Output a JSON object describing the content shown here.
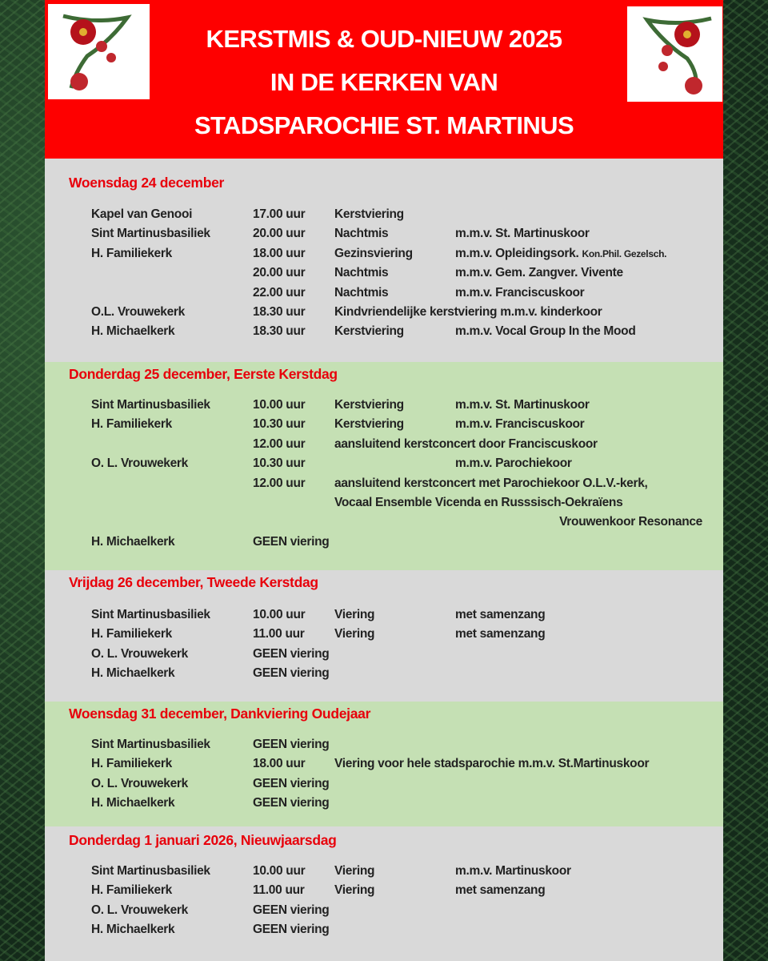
{
  "header": {
    "title_lines": [
      "KERSTMIS & OUD-NIEUW 2025",
      "IN DE KERKEN VAN",
      "STADSPAROCHIE ST. MARTINUS"
    ],
    "decoration_icon": "poinsettia-ornament-icon",
    "background_color": "#fe0000"
  },
  "colors": {
    "heading": "#e8000b",
    "gray_band": "#d9d9d9",
    "green_band": "#c5e0b4"
  },
  "sections": [
    {
      "heading": "Woensdag 24 december",
      "rows": [
        {
          "church": "Kapel van Genooi",
          "time": "17.00 uur",
          "event": "Kerstviering",
          "extra": ""
        },
        {
          "church": "Sint Martinusbasiliek",
          "time": "20.00 uur",
          "event": "Nachtmis",
          "extra": "m.m.v. St. Martinuskoor"
        },
        {
          "church": "H. Familiekerk",
          "time": "18.00 uur",
          "event": "Gezinsviering",
          "extra": "m.m.v. Opleidingsork.",
          "extra_small": "Kon.Phil. Gezelsch."
        },
        {
          "church": "",
          "time": "20.00 uur",
          "event": "Nachtmis",
          "extra": "m.m.v. Gem. Zangver. Vivente"
        },
        {
          "church": "",
          "time": "22.00 uur",
          "event": "Nachtmis",
          "extra": "m.m.v. Franciscuskoor"
        },
        {
          "church": "O.L. Vrouwekerk",
          "time": "18.30 uur",
          "event": "Kindvriendelijke kerstviering m.m.v. kinderkoor",
          "extra": ""
        },
        {
          "church": "H. Michaelkerk",
          "time": "18.30 uur",
          "event": "Kerstviering",
          "extra": "m.m.v. Vocal Group In the Mood"
        }
      ]
    },
    {
      "heading": "Donderdag 25 december, Eerste Kerstdag",
      "rows": [
        {
          "church": "Sint Martinusbasiliek",
          "time": "10.00 uur",
          "event": "Kerstviering",
          "extra": "m.m.v. St. Martinuskoor"
        },
        {
          "church": "H. Familiekerk",
          "time": "10.30 uur",
          "event": "Kerstviering",
          "extra": "m.m.v. Franciscuskoor"
        },
        {
          "church": "",
          "time": "12.00 uur",
          "event": "aansluitend kerstconcert door Franciscuskoor",
          "extra": ""
        },
        {
          "church": "O. L. Vrouwekerk",
          "time": "10.30 uur",
          "event": "",
          "extra": "m.m.v. Parochiekoor"
        },
        {
          "church": "",
          "time": "12.00 uur",
          "event": "aansluitend kerstconcert met Parochiekoor O.L.V.-kerk,",
          "extra": ""
        },
        {
          "church": "",
          "time": "",
          "event": "Vocaal Ensemble Vicenda en Russsisch-Oekraïens",
          "extra": ""
        },
        {
          "church": "",
          "time": "",
          "event": "",
          "extra": "",
          "right": "Vrouwenkoor Resonance"
        },
        {
          "church": "H. Michaelkerk",
          "time": "GEEN viering",
          "event": "",
          "extra": ""
        }
      ]
    },
    {
      "heading": "Vrijdag 26 december, Tweede Kerstdag",
      "rows": [
        {
          "church": "Sint Martinusbasiliek",
          "time": "10.00 uur",
          "event": "Viering",
          "extra": "met samenzang"
        },
        {
          "church": "H. Familiekerk",
          "time": "11.00 uur",
          "event": "Viering",
          "extra": "met samenzang"
        },
        {
          "church": "O. L. Vrouwekerk",
          "time": "GEEN viering",
          "event": "",
          "extra": ""
        },
        {
          "church": "H. Michaelkerk",
          "time": "GEEN viering",
          "event": "",
          "extra": ""
        }
      ]
    },
    {
      "heading": "Woensdag 31 december, Dankviering Oudejaar",
      "rows": [
        {
          "church": "Sint Martinusbasiliek",
          "time": "GEEN viering",
          "event": "",
          "extra": ""
        },
        {
          "church": "H. Familiekerk",
          "time": "18.00 uur",
          "event": "Viering voor hele stadsparochie m.m.v. St.Martinuskoor",
          "extra": ""
        },
        {
          "church": "O. L. Vrouwekerk",
          "time": "GEEN viering",
          "event": "",
          "extra": ""
        },
        {
          "church": "H. Michaelkerk",
          "time": "GEEN viering",
          "event": "",
          "extra": ""
        }
      ]
    },
    {
      "heading": "Donderdag 1 januari 2026, Nieuwjaarsdag",
      "rows": [
        {
          "church": "Sint Martinusbasiliek",
          "time": "10.00 uur",
          "event": "Viering",
          "extra": "m.m.v. Martinuskoor"
        },
        {
          "church": "H. Familiekerk",
          "time": "11.00 uur",
          "event": "Viering",
          "extra": "met samenzang"
        },
        {
          "church": "O. L. Vrouwekerk",
          "time": "GEEN viering",
          "event": "",
          "extra": ""
        },
        {
          "church": "H. Michaelkerk",
          "time": "GEEN viering",
          "event": "",
          "extra": ""
        }
      ]
    }
  ]
}
